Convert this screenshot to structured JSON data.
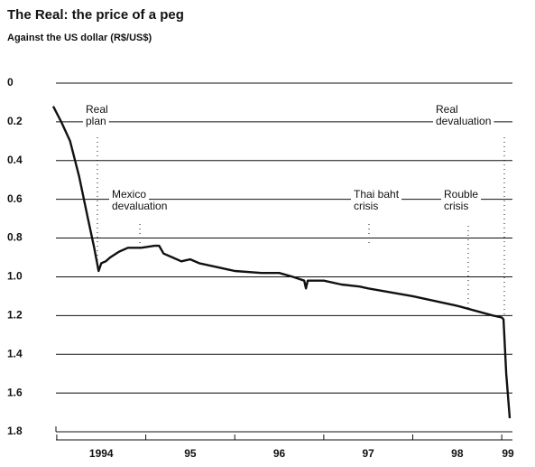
{
  "chart_data": {
    "type": "line",
    "title": "The Real: the price of a peg",
    "subtitle": "Against the US dollar (R$/US$)",
    "x": [
      1993.96,
      1994.05,
      1994.15,
      1994.25,
      1994.35,
      1994.42,
      1994.47,
      1994.5,
      1994.55,
      1994.6,
      1994.7,
      1994.8,
      1994.95,
      1995.1,
      1995.15,
      1995.2,
      1995.3,
      1995.4,
      1995.5,
      1995.6,
      1995.8,
      1996.0,
      1996.3,
      1996.5,
      1996.65,
      1996.78,
      1996.8,
      1996.82,
      1997.0,
      1997.2,
      1997.4,
      1997.5,
      1998.0,
      1998.5,
      1998.9,
      1999.0,
      1999.02,
      1999.05,
      1999.09
    ],
    "series": [
      {
        "name": "R$/US$",
        "color": "#111111",
        "values": [
          0.12,
          0.2,
          0.3,
          0.48,
          0.7,
          0.85,
          0.97,
          0.93,
          0.92,
          0.9,
          0.87,
          0.85,
          0.85,
          0.84,
          0.84,
          0.88,
          0.9,
          0.92,
          0.91,
          0.93,
          0.95,
          0.97,
          0.98,
          0.98,
          1.0,
          1.02,
          1.06,
          1.02,
          1.02,
          1.04,
          1.05,
          1.06,
          1.1,
          1.15,
          1.2,
          1.21,
          1.22,
          1.5,
          1.73
        ]
      }
    ],
    "xlim": [
      1993.95,
      1999.12
    ],
    "xticks": [
      1994,
      1995,
      1996,
      1997,
      1998,
      1999
    ],
    "x_labels": [
      {
        "value": 1994.5,
        "label": "1994"
      },
      {
        "value": 1995.5,
        "label": "95"
      },
      {
        "value": 1996.5,
        "label": "96"
      },
      {
        "value": 1997.5,
        "label": "97"
      },
      {
        "value": 1998.5,
        "label": "98"
      },
      {
        "value": 1999.07,
        "label": "99"
      }
    ],
    "ylim": [
      0,
      1.8
    ],
    "y_inverted": true,
    "yticks": [
      0,
      0.2,
      0.4,
      0.6,
      0.8,
      {
        "value": 1,
        "label": "1.0"
      },
      1.2,
      1.4,
      1.6,
      1.8
    ],
    "grid": true,
    "annotations": [
      [
        "Real",
        "plan"
      ],
      [
        "Mexico",
        "devaluation"
      ],
      [
        "Thai baht",
        "crisis"
      ],
      [
        "Rouble",
        "crisis"
      ],
      [
        "Real",
        "devaluation"
      ]
    ]
  }
}
